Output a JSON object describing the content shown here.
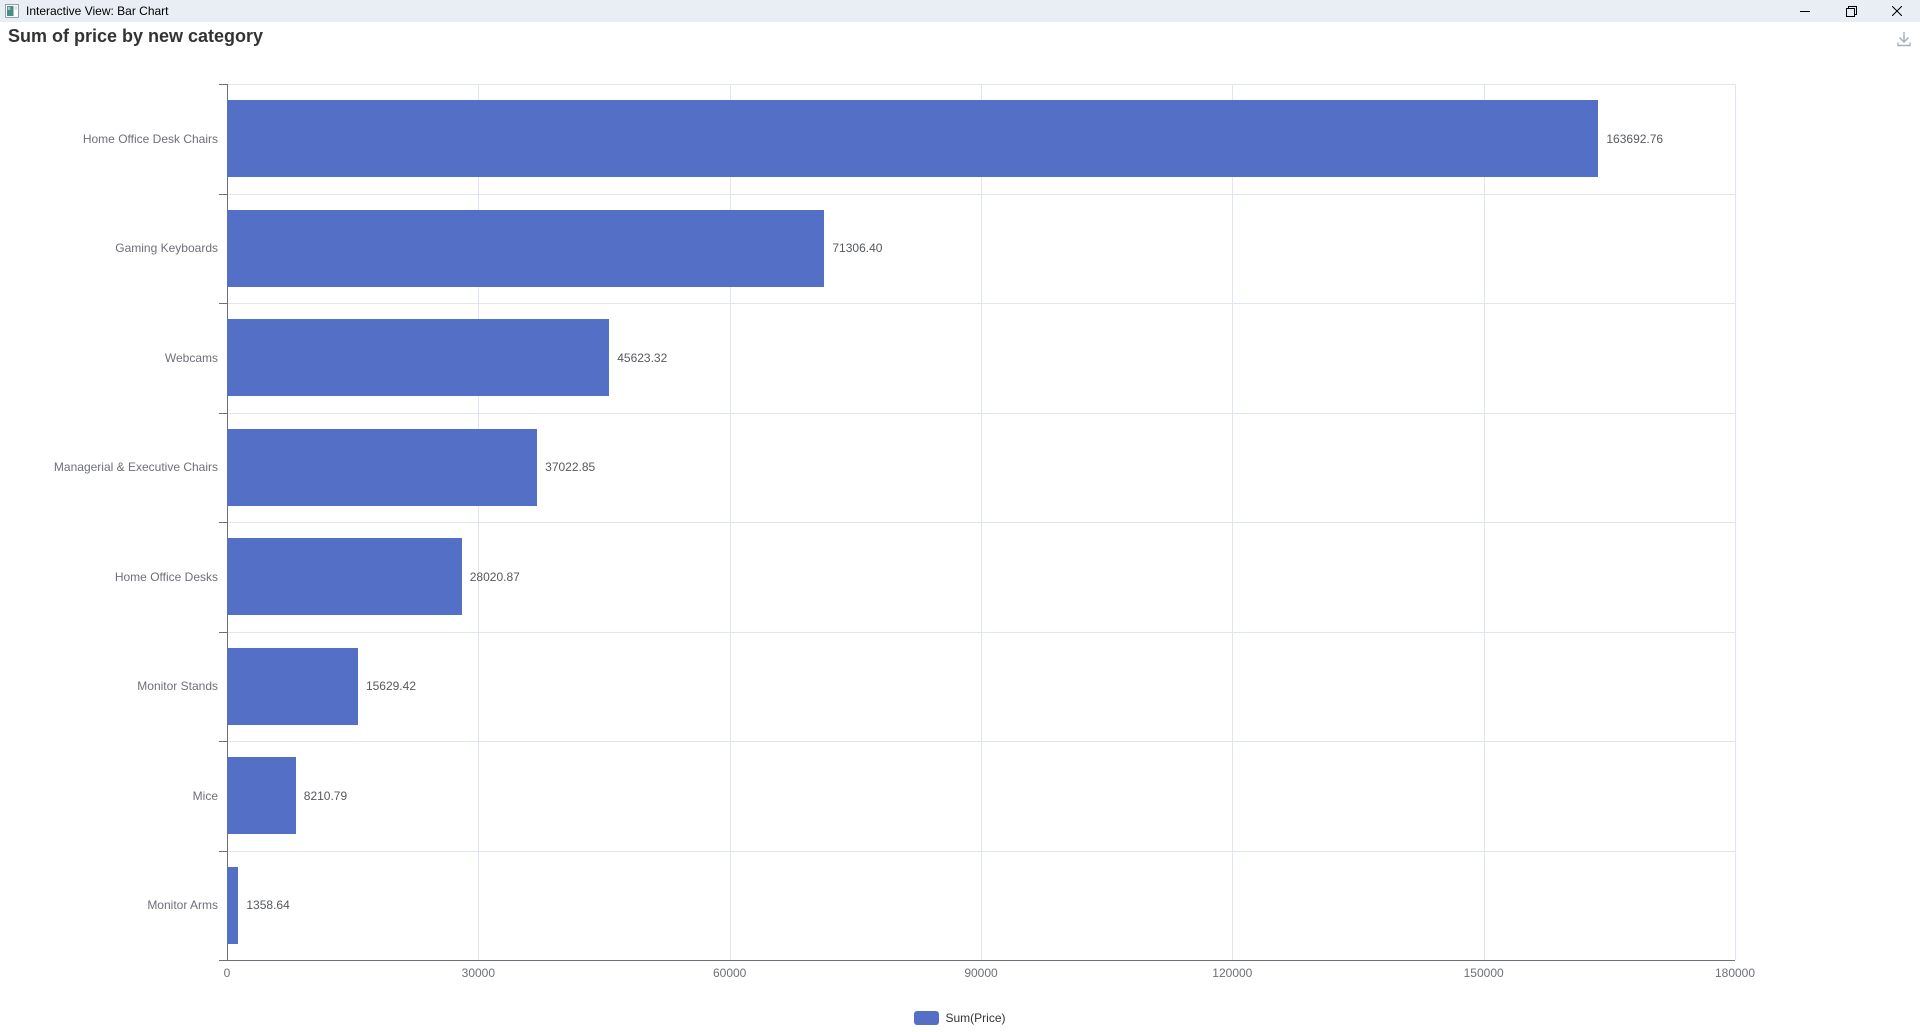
{
  "window": {
    "title": "Interactive View: Bar Chart"
  },
  "header": {
    "title": "Sum of price by new category"
  },
  "chart_data": {
    "type": "bar",
    "orientation": "horizontal",
    "title": "Sum of price by new category",
    "categories": [
      "Home Office Desk Chairs",
      "Gaming Keyboards",
      "Webcams",
      "Managerial & Executive Chairs",
      "Home Office Desks",
      "Monitor Stands",
      "Mice",
      "Monitor Arms"
    ],
    "values": [
      163692.76,
      71306.4,
      45623.32,
      37022.85,
      28020.87,
      15629.42,
      8210.79,
      1358.64
    ],
    "value_labels": [
      "163692.76",
      "71306.40",
      "45623.32",
      "37022.85",
      "28020.87",
      "15629.42",
      "8210.79",
      "1358.64"
    ],
    "series": [
      {
        "name": "Sum(Price)",
        "values": [
          163692.76,
          71306.4,
          45623.32,
          37022.85,
          28020.87,
          15629.42,
          8210.79,
          1358.64
        ]
      }
    ],
    "xlabel": "",
    "ylabel": "",
    "xlim": [
      0,
      180000
    ],
    "x_ticks": [
      0,
      30000,
      60000,
      90000,
      120000,
      150000,
      180000
    ],
    "x_tick_labels": [
      "0",
      "30000",
      "60000",
      "90000",
      "120000",
      "150000",
      "180000"
    ],
    "grid": true,
    "legend_position": "bottom",
    "bar_color": "#5470C6"
  },
  "legend": {
    "label": "Sum(Price)",
    "color": "#5470C6"
  },
  "colors": {
    "bar": "#5470C6",
    "axis": "#6E7079",
    "gridline": "#E0E6F1",
    "tick_label": "#6E7079",
    "value_label": "#56595D",
    "titlebar_bg": "#E9EEF4"
  }
}
